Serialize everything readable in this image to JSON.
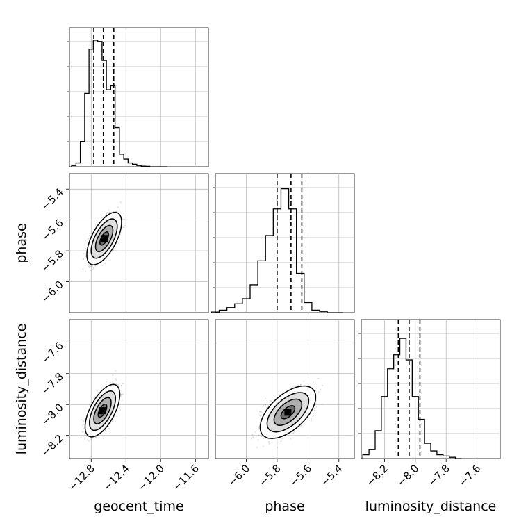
{
  "chart_data": {
    "type": "corner",
    "parameters": [
      "geocent_time",
      "phase",
      "luminosity_distance"
    ],
    "grid": true,
    "axes": {
      "geocent_time": {
        "range": [
          -13.05,
          -11.45
        ],
        "ticks": [
          -12.8,
          -12.4,
          -12.0,
          -11.6
        ],
        "tick_labels": [
          "−12.8",
          "−12.4",
          "−12.0",
          "−11.6"
        ]
      },
      "phase": {
        "range": [
          -6.2,
          -5.3
        ],
        "ticks": [
          -6.0,
          -5.8,
          -5.6,
          -5.4
        ],
        "tick_labels": [
          "−6.0",
          "−5.8",
          "−5.6",
          "−5.4"
        ]
      },
      "luminosity_distance": {
        "range": [
          -8.35,
          -7.45
        ],
        "ticks": [
          -8.2,
          -8.0,
          -7.8,
          -7.6
        ],
        "tick_labels": [
          "−8.2",
          "−8.0",
          "−7.8",
          "−7.6"
        ]
      }
    },
    "histograms": {
      "geocent_time": {
        "bin_centers": [
          -13.0,
          -12.95,
          -12.9,
          -12.85,
          -12.8,
          -12.75,
          -12.7,
          -12.65,
          -12.6,
          -12.55,
          -12.5,
          -12.45,
          -12.4,
          -12.35,
          -12.3,
          -12.25,
          -12.2,
          -12.15,
          -12.1,
          -12.05,
          -12.0,
          -11.95
        ],
        "counts": [
          0.01,
          0.03,
          0.2,
          0.58,
          0.93,
          1.0,
          0.99,
          0.84,
          0.61,
          0.64,
          0.31,
          0.1,
          0.06,
          0.03,
          0.02,
          0.01,
          0.005,
          0.003,
          0,
          0,
          0,
          0
        ],
        "quantiles": [
          -12.77,
          -12.66,
          -12.54
        ]
      },
      "phase": {
        "bin_centers": [
          -6.2,
          -6.15,
          -6.1,
          -6.05,
          -6.0,
          -5.95,
          -5.9,
          -5.85,
          -5.8,
          -5.75,
          -5.7,
          -5.65,
          -5.6,
          -5.55,
          -5.5,
          -5.45,
          -5.4
        ],
        "counts": [
          0.005,
          0.02,
          0.04,
          0.07,
          0.11,
          0.22,
          0.41,
          0.61,
          0.82,
          0.98,
          0.82,
          0.31,
          0.08,
          0.02,
          0.01,
          0,
          0
        ],
        "quantiles": [
          -5.8,
          -5.71,
          -5.64
        ]
      },
      "luminosity_distance": {
        "bin_centers": [
          -8.32,
          -8.28,
          -8.24,
          -8.2,
          -8.16,
          -8.12,
          -8.08,
          -8.04,
          -8.0,
          -7.96,
          -7.92,
          -7.88,
          -7.84,
          -7.8,
          -7.76,
          -7.72
        ],
        "counts": [
          0.03,
          0.07,
          0.22,
          0.49,
          0.71,
          0.82,
          0.95,
          0.78,
          0.49,
          0.31,
          0.12,
          0.06,
          0.03,
          0.02,
          0.01,
          0
        ],
        "quantiles": [
          -8.11,
          -8.04,
          -7.97
        ]
      }
    },
    "joint": [
      {
        "x": "geocent_time",
        "y": "phase",
        "mean": [
          -12.65,
          -5.72
        ],
        "sd": [
          0.1,
          0.085
        ],
        "rho": 0.62
      },
      {
        "x": "geocent_time",
        "y": "luminosity_distance",
        "mean": [
          -12.67,
          -8.04
        ],
        "sd": [
          0.1,
          0.085
        ],
        "rho": 0.62
      },
      {
        "x": "phase",
        "y": "luminosity_distance",
        "mean": [
          -5.73,
          -8.05
        ],
        "sd": [
          0.09,
          0.085
        ],
        "rho": 0.58
      }
    ],
    "contour_levels_sigma": [
      0.5,
      1.0,
      1.5,
      2.0
    ],
    "colors": {
      "line": "#000000",
      "grid": "#b0b0b0",
      "points": "#000000"
    }
  }
}
